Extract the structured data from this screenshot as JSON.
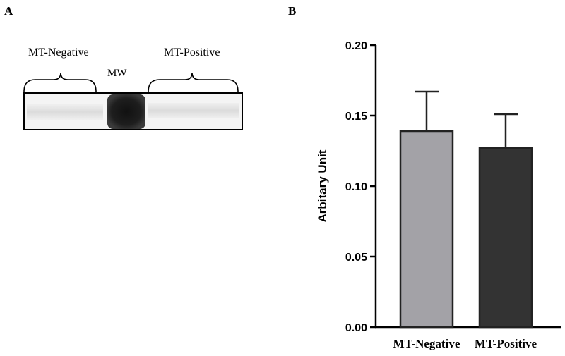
{
  "panels": {
    "a_label": "A",
    "b_label": "B"
  },
  "blot": {
    "left_group_label": "MT-Negative",
    "marker_label": "MW",
    "right_group_label": "MT-Positive"
  },
  "chart_data": {
    "type": "bar",
    "categories": [
      "MT-Negative",
      "MT-Positive"
    ],
    "values": [
      0.139,
      0.127
    ],
    "errors": [
      0.028,
      0.024
    ],
    "colors": [
      "#a3a2a7",
      "#333333"
    ],
    "xlabel": "",
    "ylabel": "Arbitary Unit",
    "ylim": [
      0,
      0.2
    ],
    "yticks": [
      "0.00",
      "0.05",
      "0.10",
      "0.15",
      "0.20"
    ],
    "grid": false
  }
}
